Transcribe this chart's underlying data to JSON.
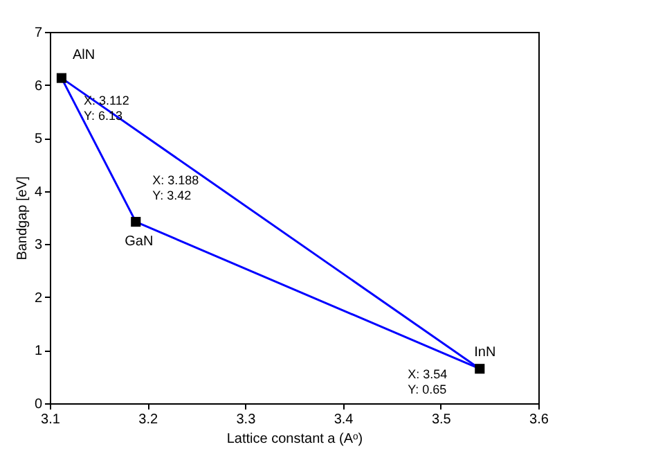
{
  "chart_data": {
    "type": "line",
    "xlabel": "Lattice constant a (Aᵒ)",
    "ylabel": "Bandgap [eV]",
    "xlim": [
      3.1,
      3.6
    ],
    "xticks": [
      3.1,
      3.2,
      3.3,
      3.4,
      3.5,
      3.6
    ],
    "ylim": [
      0,
      7
    ],
    "yticks": [
      0,
      1,
      2,
      3,
      4,
      5,
      6,
      7
    ],
    "grid": false,
    "series": [
      {
        "color": "#0000ff",
        "x": [
          3.112,
          3.188,
          3.54
        ],
        "values": [
          6.13,
          3.42,
          0.65
        ],
        "marker": "none"
      },
      {
        "color": "#0000ff",
        "x": [
          3.112,
          3.54
        ],
        "values": [
          6.13,
          0.65
        ],
        "marker": "none"
      },
      {
        "type": "scatter",
        "color": "#000000",
        "x": [
          3.112,
          3.188,
          3.54
        ],
        "values": [
          6.13,
          3.42,
          0.65
        ],
        "marker": "square"
      }
    ],
    "annotations": [
      {
        "text": "AlN",
        "x": 3.112,
        "y": 6.13
      },
      {
        "text": "X: 3.112\nY: 6.13",
        "x": 3.112,
        "y": 6.13
      },
      {
        "text": "GaN",
        "x": 3.188,
        "y": 3.42
      },
      {
        "text": "X: 3.188\nY: 3.42",
        "x": 3.188,
        "y": 3.42
      },
      {
        "text": "InN",
        "x": 3.54,
        "y": 0.65
      },
      {
        "text": "X: 3.54\nY: 0.65",
        "x": 3.54,
        "y": 0.65
      }
    ]
  }
}
